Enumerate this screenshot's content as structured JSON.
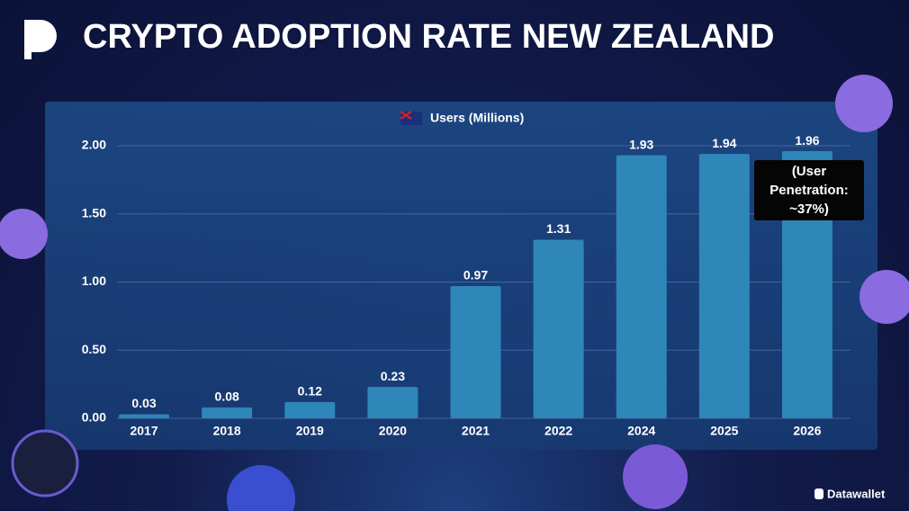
{
  "title": "CRYPTO ADOPTION RATE NEW ZEALAND",
  "brand": "Datawallet",
  "chart_data": {
    "type": "bar",
    "legend_label": "Users (Millions)",
    "categories": [
      "2017",
      "2018",
      "2019",
      "2020",
      "2021",
      "2022",
      "2024",
      "2025",
      "2026"
    ],
    "values": [
      0.03,
      0.08,
      0.12,
      0.23,
      0.97,
      1.31,
      1.93,
      1.94,
      1.96
    ],
    "color": "#2f86b9",
    "ylim": [
      0,
      2
    ],
    "yticks": [
      {
        "value": 0,
        "label": "0.00"
      },
      {
        "value": 0.5,
        "label": "0.50"
      },
      {
        "value": 1,
        "label": "1.00"
      },
      {
        "value": 1.5,
        "label": "1.50"
      },
      {
        "value": 2,
        "label": "2.00"
      }
    ],
    "grid": true,
    "annotation": "(User Penetration: ~37%)"
  }
}
